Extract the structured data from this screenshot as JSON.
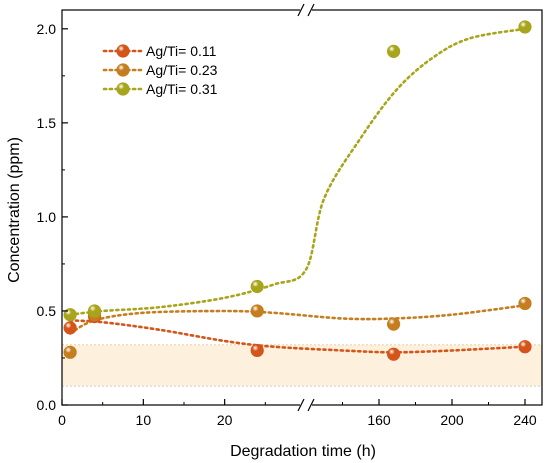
{
  "chart_data": {
    "type": "scatter",
    "title": "",
    "xlabel": "Degradation time (h)",
    "ylabel": "Concentration (ppm)",
    "x_axis_break": true,
    "x_segments": [
      {
        "range": [
          0,
          30
        ],
        "ticks": [
          0,
          10,
          20
        ]
      },
      {
        "range": [
          120,
          240
        ],
        "ticks": [
          160,
          200,
          240
        ]
      }
    ],
    "ylim": [
      0,
      2.1
    ],
    "y_ticks": [
      0.0,
      0.5,
      1.0,
      1.5,
      2.0
    ],
    "y_tick_labels": [
      "0.0",
      "0.5",
      "1.0",
      "1.5",
      "2.0"
    ],
    "x_tick_labels": [
      "0",
      "10",
      "20",
      "160",
      "200",
      "240"
    ],
    "series": [
      {
        "name": "Ag/Ti= 0.11",
        "color": "#d4541a",
        "x": [
          1,
          4,
          24,
          168,
          240
        ],
        "y": [
          0.41,
          0.47,
          0.29,
          0.27,
          0.31
        ],
        "trend": [
          [
            1,
            0.45
          ],
          [
            5,
            0.44
          ],
          [
            12,
            0.4
          ],
          [
            20,
            0.34
          ],
          [
            26,
            0.31
          ],
          [
            140,
            0.29
          ],
          [
            168,
            0.28
          ],
          [
            200,
            0.29
          ],
          [
            240,
            0.31
          ]
        ]
      },
      {
        "name": "Ag/Ti= 0.23",
        "color": "#c57e1f",
        "x": [
          1,
          4,
          24,
          168,
          240
        ],
        "y": [
          0.28,
          0.48,
          0.5,
          0.43,
          0.54
        ],
        "trend": [
          [
            1,
            0.38
          ],
          [
            4,
            0.45
          ],
          [
            10,
            0.49
          ],
          [
            20,
            0.5
          ],
          [
            26,
            0.49
          ],
          [
            140,
            0.46
          ],
          [
            168,
            0.46
          ],
          [
            200,
            0.48
          ],
          [
            240,
            0.53
          ]
        ]
      },
      {
        "name": "Ag/Ti= 0.31",
        "color": "#a8a51c",
        "x": [
          1,
          4,
          24,
          168,
          240
        ],
        "y": [
          0.48,
          0.5,
          0.63,
          1.88,
          2.01
        ],
        "trend": [
          [
            1,
            0.48
          ],
          [
            5,
            0.5
          ],
          [
            12,
            0.52
          ],
          [
            20,
            0.57
          ],
          [
            26,
            0.64
          ],
          [
            30,
            0.72
          ],
          [
            130,
            1.1
          ],
          [
            150,
            1.42
          ],
          [
            170,
            1.68
          ],
          [
            190,
            1.85
          ],
          [
            210,
            1.95
          ],
          [
            240,
            2.0
          ]
        ]
      }
    ],
    "shaded_band": {
      "y_from": 0.1,
      "y_to": 0.32,
      "color": "#fdf0dc"
    },
    "legend": {
      "placement": "top-left"
    },
    "grid": false
  }
}
